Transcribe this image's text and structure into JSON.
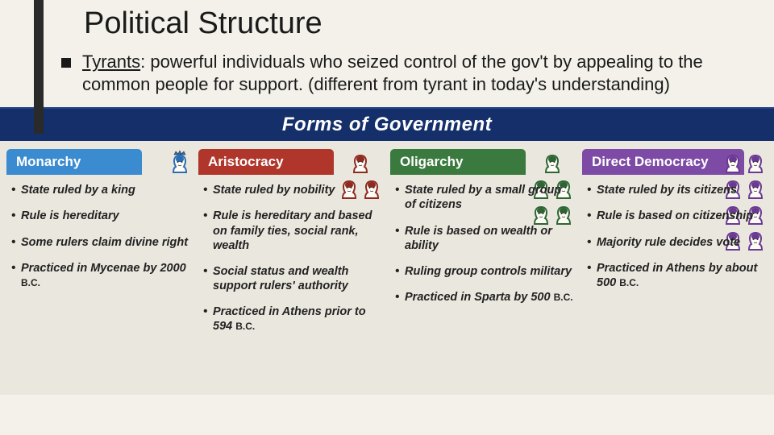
{
  "slide": {
    "title": "Political Structure",
    "bullet_term": "Tyrants",
    "bullet_rest": ": powerful individuals who seized control of the gov't by appealing to the common people for support. (different from tyrant in today's understanding)"
  },
  "chart": {
    "banner_title": "Forms of Government",
    "background_color": "#eae7de",
    "banner_color": "#152f6b",
    "columns": [
      {
        "key": "monarchy",
        "label": "Monarchy",
        "color": "#3b8bd0",
        "icon_color": "#2b6db3",
        "icon_rows": [
          1
        ],
        "points": [
          "State ruled by a king",
          "Rule is hereditary",
          "Some rulers claim divine right",
          "Practiced in Mycenae by 2000 B.C."
        ]
      },
      {
        "key": "aristocracy",
        "label": "Aristocracy",
        "color": "#b0362b",
        "icon_color": "#8e2a20",
        "icon_rows": [
          1,
          2
        ],
        "points": [
          "State ruled by nobility",
          "Rule is hereditary and based on family ties, social rank, wealth",
          "Social status and wealth support rulers' authority",
          "Practiced in Athens prior to 594 B.C."
        ]
      },
      {
        "key": "oligarchy",
        "label": "Oligarchy",
        "color": "#3a7a3f",
        "icon_color": "#2e6633",
        "icon_rows": [
          1,
          2,
          2
        ],
        "points": [
          "State ruled by a small group of citizens",
          "Rule is based on wealth or ability",
          "Ruling group controls military",
          "Practiced in Sparta by 500 B.C."
        ]
      },
      {
        "key": "democracy",
        "label": "Direct Democracy",
        "color": "#7d4aa6",
        "icon_color": "#6a3a92",
        "icon_rows": [
          2,
          2,
          2,
          2
        ],
        "points": [
          "State ruled by its citizens",
          "Rule is based on citizenship",
          "Majority rule decides vote",
          "Practiced in Athens by about 500 B.C."
        ]
      }
    ]
  }
}
